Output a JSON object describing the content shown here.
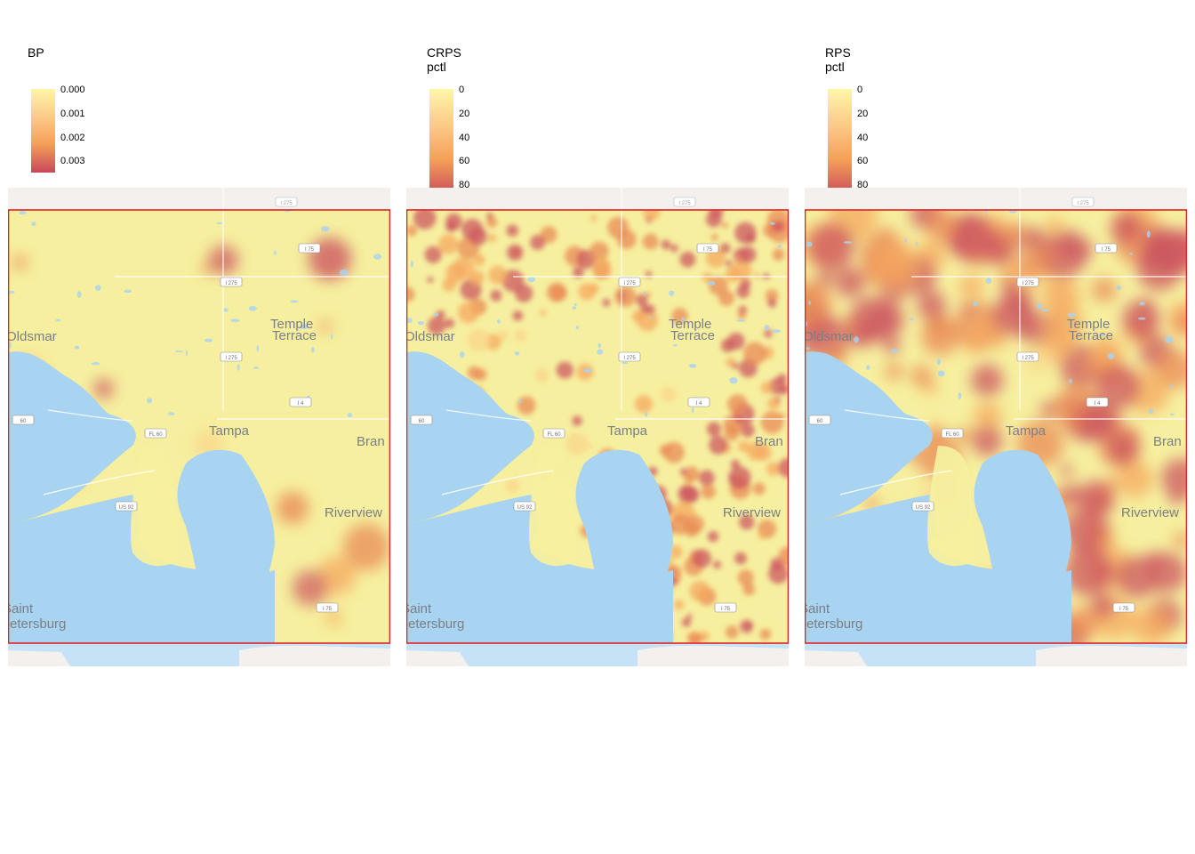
{
  "panels": [
    {
      "title": "BP",
      "scale": "bp",
      "ticks": [
        "0.000",
        "0.001",
        "0.002",
        "0.003"
      ]
    },
    {
      "title": "CRPS pctl",
      "scale": "crps",
      "ticks": [
        "0",
        "20",
        "40",
        "60",
        "80"
      ]
    },
    {
      "title": "RPS pctl",
      "scale": "rps",
      "ticks": [
        "0",
        "20",
        "40",
        "60",
        "80"
      ]
    }
  ],
  "map": {
    "place_labels": [
      "Tampa",
      "Temple",
      "Terrace",
      "Oldsmar",
      "Bran",
      "Riverview",
      "Saint",
      "Petersburg"
    ],
    "road_shields": [
      "I 275",
      "I 75",
      "I 275",
      "I 275",
      "I 4",
      "60",
      "FL 60",
      "US 92",
      "US 92",
      "I 75"
    ]
  },
  "colors": {
    "water": "#a8d3f1",
    "land_base": "#f6ef9f",
    "boundary": "#e02424",
    "scale_low": "#fff6a8",
    "scale_mid": "#f6a159",
    "scale_high": "#c8475a"
  }
}
